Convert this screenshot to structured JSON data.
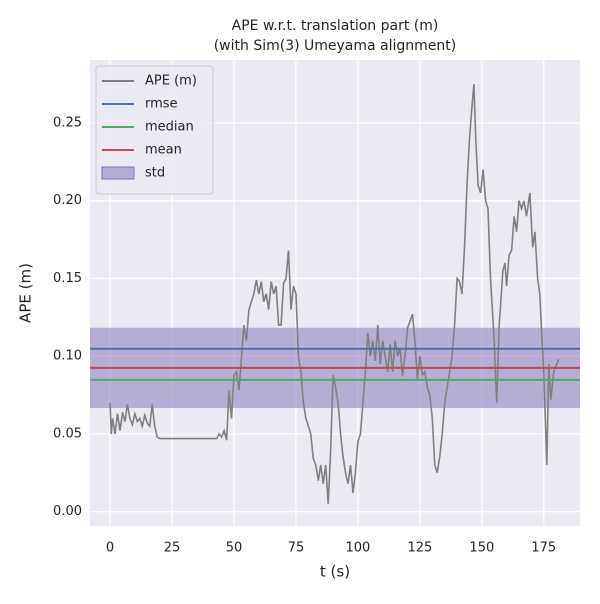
{
  "chart_data": {
    "type": "line",
    "title": "APE w.r.t. translation part (m)",
    "subtitle": "(with Sim(3) Umeyama alignment)",
    "xlabel": "t (s)",
    "ylabel": "APE (m)",
    "xlim": [
      -8.1,
      189.6
    ],
    "ylim": [
      -0.0092,
      0.2905
    ],
    "xticks": [
      0,
      25,
      50,
      75,
      100,
      125,
      150,
      175
    ],
    "yticks": [
      {
        "value": 0,
        "label": "0.00"
      },
      0.05,
      {
        "value": 0.1,
        "label": "0.10"
      },
      0.15,
      {
        "value": 0.2,
        "label": "0.20"
      },
      0.25
    ],
    "grid": true,
    "legend": "upper left",
    "series": [
      {
        "name": "APE (m)",
        "color": "#808080",
        "x": [
          0,
          0.5,
          1,
          2,
          3,
          4,
          5,
          6,
          7,
          8,
          9,
          10,
          11,
          12,
          13,
          14,
          15,
          16,
          17,
          18,
          19,
          20,
          30,
          43,
          44,
          45,
          46,
          47,
          48,
          49,
          50,
          51,
          52,
          54,
          55,
          56,
          58,
          59,
          60,
          61,
          62,
          63,
          64,
          65,
          66,
          67,
          68,
          69,
          70,
          71,
          72,
          73,
          74,
          75,
          76,
          77,
          78,
          79,
          80,
          81,
          82,
          83,
          84,
          85,
          86,
          87,
          88,
          89,
          90,
          91,
          92,
          93,
          94,
          95,
          96,
          97,
          98,
          99,
          100,
          101,
          102,
          103,
          104,
          105,
          106,
          107,
          108,
          109,
          110,
          111,
          112,
          113,
          114,
          115,
          116,
          117,
          118,
          119,
          120,
          122,
          123,
          124,
          125,
          126,
          127,
          128,
          129,
          130,
          131,
          132,
          133,
          134,
          135,
          136,
          137,
          138,
          139,
          140,
          141,
          142,
          143,
          144,
          145,
          146,
          146.8,
          147.5,
          148.5,
          149.5,
          150.5,
          151.5,
          152.5,
          153.5,
          155,
          156,
          157,
          158.5,
          159.3,
          160,
          161,
          162,
          163,
          164,
          165,
          166,
          167,
          168,
          169.4,
          170.5,
          171.4,
          172.5,
          173.4,
          174,
          175,
          176.2,
          177,
          177.8,
          179,
          181
        ],
        "values": [
          0.07,
          0.05,
          0.06,
          0.05,
          0.063,
          0.052,
          0.064,
          0.058,
          0.069,
          0.06,
          0.056,
          0.063,
          0.058,
          0.06,
          0.055,
          0.062,
          0.057,
          0.055,
          0.069,
          0.055,
          0.048,
          0.047,
          0.047,
          0.047,
          0.05,
          0.048,
          0.052,
          0.046,
          0.078,
          0.06,
          0.088,
          0.09,
          0.078,
          0.12,
          0.11,
          0.13,
          0.14,
          0.149,
          0.14,
          0.148,
          0.135,
          0.14,
          0.13,
          0.148,
          0.14,
          0.145,
          0.12,
          0.12,
          0.147,
          0.15,
          0.168,
          0.13,
          0.145,
          0.14,
          0.1,
          0.09,
          0.07,
          0.06,
          0.055,
          0.05,
          0.034,
          0.03,
          0.02,
          0.03,
          0.018,
          0.03,
          0.005,
          0.04,
          0.088,
          0.08,
          0.07,
          0.05,
          0.035,
          0.025,
          0.018,
          0.03,
          0.012,
          0.025,
          0.045,
          0.05,
          0.07,
          0.09,
          0.115,
          0.1,
          0.11,
          0.097,
          0.12,
          0.095,
          0.11,
          0.1,
          0.09,
          0.108,
          0.09,
          0.11,
          0.1,
          0.105,
          0.087,
          0.1,
          0.118,
          0.127,
          0.11,
          0.085,
          0.1,
          0.088,
          0.09,
          0.08,
          0.075,
          0.06,
          0.03,
          0.025,
          0.035,
          0.05,
          0.07,
          0.08,
          0.09,
          0.1,
          0.12,
          0.15,
          0.148,
          0.14,
          0.17,
          0.21,
          0.24,
          0.26,
          0.275,
          0.24,
          0.21,
          0.205,
          0.22,
          0.2,
          0.195,
          0.15,
          0.11,
          0.07,
          0.12,
          0.155,
          0.16,
          0.145,
          0.165,
          0.168,
          0.19,
          0.18,
          0.2,
          0.195,
          0.2,
          0.19,
          0.205,
          0.17,
          0.18,
          0.15,
          0.14,
          0.12,
          0.09,
          0.03,
          0.095,
          0.072,
          0.09,
          0.098
        ]
      }
    ],
    "stats": [
      {
        "name": "rmse",
        "color": "#4c72b0",
        "value": 0.1048
      },
      {
        "name": "median",
        "color": "#55a868",
        "value": 0.0848
      },
      {
        "name": "mean",
        "color": "#c44e52",
        "value": 0.0925
      },
      {
        "name": "std",
        "color": "#8172b2",
        "value": 0.0258
      }
    ]
  }
}
